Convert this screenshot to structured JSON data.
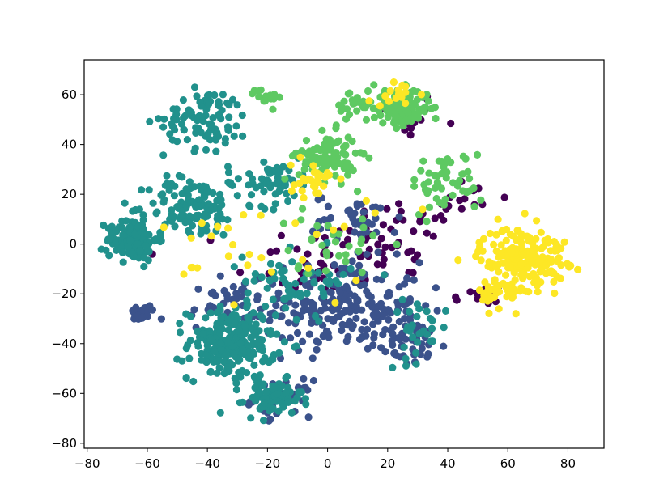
{
  "chart_data": {
    "type": "scatter",
    "title": "",
    "xlabel": "",
    "ylabel": "",
    "xlim": [
      -81,
      92
    ],
    "ylim": [
      -82,
      74
    ],
    "grid": false,
    "legend": "none",
    "x_ticks": [
      -80,
      -60,
      -40,
      -20,
      0,
      20,
      40,
      60,
      80
    ],
    "x_tick_labels": [
      "−80",
      "−60",
      "−40",
      "−20",
      "0",
      "20",
      "40",
      "60",
      "80"
    ],
    "y_ticks": [
      -80,
      -60,
      -40,
      -20,
      0,
      20,
      40,
      60
    ],
    "y_tick_labels": [
      "−80",
      "−60",
      "−40",
      "−20",
      "0",
      "20",
      "40",
      "60"
    ],
    "colors": [
      "#440154",
      "#3b528b",
      "#21918c",
      "#5ec962",
      "#fde725"
    ],
    "clusters": [
      {
        "color_index": 0,
        "center": [
          26,
          52
        ],
        "spread": [
          9,
          8
        ],
        "count": 20
      },
      {
        "color_index": 0,
        "center": [
          25,
          2
        ],
        "spread": [
          16,
          14
        ],
        "count": 40
      },
      {
        "color_index": 0,
        "center": [
          -5,
          -8
        ],
        "spread": [
          22,
          14
        ],
        "count": 45
      },
      {
        "color_index": 0,
        "center": [
          45,
          18
        ],
        "spread": [
          10,
          8
        ],
        "count": 15
      },
      {
        "color_index": 0,
        "center": [
          50,
          -22
        ],
        "spread": [
          8,
          6
        ],
        "count": 12
      },
      {
        "color_index": 1,
        "center": [
          5,
          -25
        ],
        "spread": [
          22,
          15
        ],
        "count": 220
      },
      {
        "color_index": 1,
        "center": [
          -35,
          -25
        ],
        "spread": [
          9,
          8
        ],
        "count": 40
      },
      {
        "color_index": 1,
        "center": [
          -62,
          -28
        ],
        "spread": [
          4,
          3
        ],
        "count": 25
      },
      {
        "color_index": 1,
        "center": [
          -15,
          -62
        ],
        "spread": [
          8,
          6
        ],
        "count": 40
      },
      {
        "color_index": 1,
        "center": [
          28,
          -40
        ],
        "spread": [
          10,
          8
        ],
        "count": 45
      },
      {
        "color_index": 1,
        "center": [
          10,
          10
        ],
        "spread": [
          12,
          8
        ],
        "count": 40
      },
      {
        "color_index": 2,
        "center": [
          -32,
          -40
        ],
        "spread": [
          12,
          12
        ],
        "count": 220
      },
      {
        "color_index": 2,
        "center": [
          -18,
          -62
        ],
        "spread": [
          8,
          6
        ],
        "count": 70
      },
      {
        "color_index": 2,
        "center": [
          -65,
          2
        ],
        "spread": [
          7,
          7
        ],
        "count": 140
      },
      {
        "color_index": 2,
        "center": [
          -45,
          15
        ],
        "spread": [
          12,
          10
        ],
        "count": 120
      },
      {
        "color_index": 2,
        "center": [
          -40,
          50
        ],
        "spread": [
          12,
          10
        ],
        "count": 90
      },
      {
        "color_index": 2,
        "center": [
          -20,
          25
        ],
        "spread": [
          12,
          8
        ],
        "count": 60
      },
      {
        "color_index": 2,
        "center": [
          -10,
          -15
        ],
        "spread": [
          15,
          10
        ],
        "count": 60
      },
      {
        "color_index": 2,
        "center": [
          30,
          -35
        ],
        "spread": [
          8,
          10
        ],
        "count": 30
      },
      {
        "color_index": 3,
        "center": [
          25,
          55
        ],
        "spread": [
          8,
          6
        ],
        "count": 130
      },
      {
        "color_index": 3,
        "center": [
          0,
          35
        ],
        "spread": [
          8,
          8
        ],
        "count": 90
      },
      {
        "color_index": 3,
        "center": [
          10,
          55
        ],
        "spread": [
          6,
          6
        ],
        "count": 30
      },
      {
        "color_index": 3,
        "center": [
          40,
          25
        ],
        "spread": [
          10,
          10
        ],
        "count": 50
      },
      {
        "color_index": 3,
        "center": [
          -20,
          60
        ],
        "spread": [
          5,
          4
        ],
        "count": 15
      },
      {
        "color_index": 3,
        "center": [
          0,
          0
        ],
        "spread": [
          15,
          10
        ],
        "count": 30
      },
      {
        "color_index": 4,
        "center": [
          65,
          -5
        ],
        "spread": [
          12,
          10
        ],
        "count": 180
      },
      {
        "color_index": 4,
        "center": [
          58,
          -20
        ],
        "spread": [
          6,
          5
        ],
        "count": 40
      },
      {
        "color_index": 4,
        "center": [
          -5,
          25
        ],
        "spread": [
          6,
          6
        ],
        "count": 30
      },
      {
        "color_index": 4,
        "center": [
          -20,
          0
        ],
        "spread": [
          30,
          20
        ],
        "count": 30
      },
      {
        "color_index": 4,
        "center": [
          25,
          60
        ],
        "spread": [
          8,
          5
        ],
        "count": 15
      }
    ]
  }
}
